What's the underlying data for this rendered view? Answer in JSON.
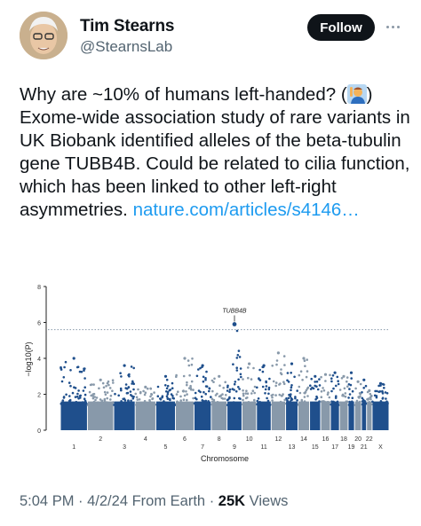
{
  "author": {
    "name": "Tim Stearns",
    "handle": "@StearnsLab",
    "follow_label": "Follow",
    "more_icon": "ellipsis-icon"
  },
  "tweet": {
    "text_before_link": "Why are ~10% of humans left-handed? (",
    "emoji": "person-raising-hand-emoji",
    "text_after_emoji": ") Exome-wide association study of rare variants in UK Biobank identified alleles of the beta-tubulin gene TUBB4B. Could be related to cilia function, which has been linked to other left-right asymmetries. ",
    "link": "nature.com/articles/s4146…"
  },
  "footer": {
    "time": "5:04 PM",
    "sep1": " · ",
    "date": "4/2/24",
    "source": " From Earth",
    "sep2": " · ",
    "views_count": "25K",
    "views_label": " Views"
  },
  "chart_data": {
    "type": "scatter",
    "title": "",
    "xlabel": "Chromosome",
    "ylabel": "−log10(P)",
    "ylim": [
      0,
      8
    ],
    "y_ticks": [
      "0",
      "2",
      "4",
      "6",
      "8"
    ],
    "significance_line": 5.6,
    "annotation": {
      "label": "TUBB4B",
      "chromosome": "9",
      "value": 5.9
    },
    "chromosome_labels_upper": [
      "2",
      "4",
      "6",
      "8",
      "10",
      "12",
      "14",
      "16",
      "18",
      "20",
      "22"
    ],
    "chromosome_labels_lower": [
      "1",
      "3",
      "5",
      "7",
      "9",
      "11",
      "13",
      "15",
      "17",
      "19",
      "21",
      "X"
    ],
    "chromosomes": [
      "1",
      "2",
      "3",
      "4",
      "5",
      "6",
      "7",
      "8",
      "9",
      "10",
      "11",
      "12",
      "13",
      "14",
      "15",
      "16",
      "17",
      "18",
      "19",
      "20",
      "21",
      "22",
      "X"
    ],
    "chromosome_peak_values": [
      4.0,
      2.8,
      3.6,
      2.4,
      3.0,
      4.0,
      3.6,
      3.0,
      5.9,
      3.7,
      3.6,
      4.3,
      3.7,
      4.0,
      3.0,
      3.1,
      3.2,
      3.0,
      3.2,
      2.7,
      2.8,
      2.2,
      2.6
    ],
    "colors": {
      "odd": "#1f4f8c",
      "even": "#8899aa",
      "line": "#8899aa"
    }
  }
}
